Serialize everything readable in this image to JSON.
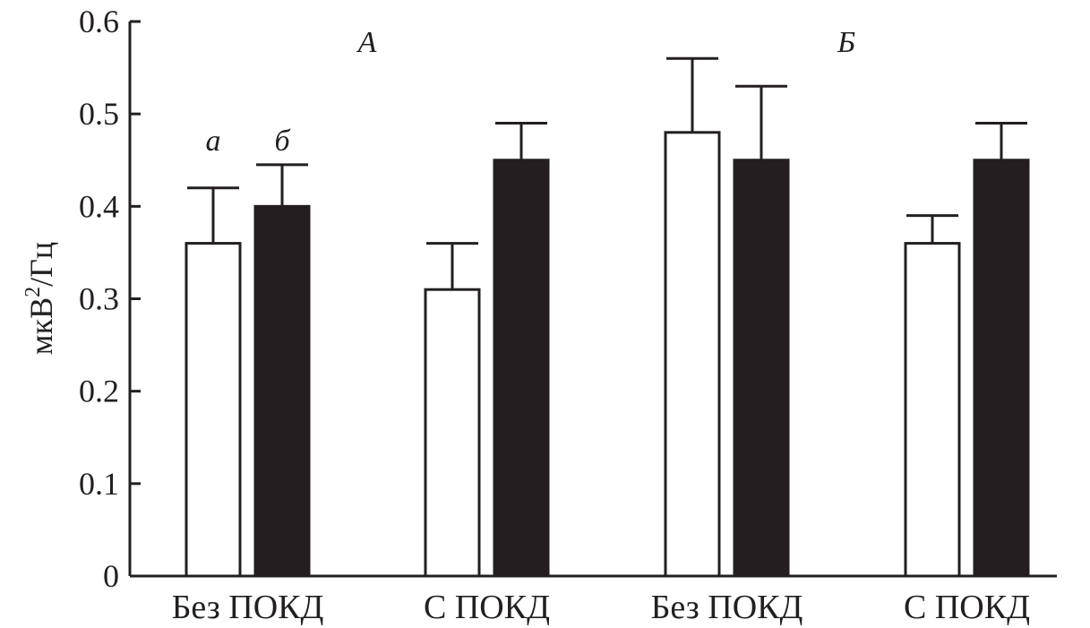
{
  "chart_data": {
    "type": "bar",
    "title": "",
    "xlabel": "",
    "ylabel": "мкВ²/Гц",
    "ylabel_base": "мкВ",
    "ylabel_sup": "2",
    "ylabel_tail": "/Гц",
    "ylim": [
      0,
      0.6
    ],
    "yticks": [
      "0",
      "0.1",
      "0.2",
      "0.3",
      "0.4",
      "0.5",
      "0.6"
    ],
    "ytick_values": [
      0,
      0.1,
      0.2,
      0.3,
      0.4,
      0.5,
      0.6
    ],
    "categories": [
      "Без ПОКД",
      "С ПОКД",
      "Без ПОКД",
      "С ПОКД"
    ],
    "panels": [
      "А",
      "Б"
    ],
    "series": [
      {
        "name": "а",
        "color": "#ffffff",
        "values": [
          0.36,
          0.31,
          0.48,
          0.36
        ],
        "error_upper": [
          0.42,
          0.36,
          0.56,
          0.39
        ]
      },
      {
        "name": "б",
        "color": "#231f20",
        "values": [
          0.4,
          0.45,
          0.45,
          0.45
        ],
        "error_upper": [
          0.445,
          0.49,
          0.53,
          0.49
        ]
      }
    ],
    "grid": false,
    "legend": "above first group"
  }
}
